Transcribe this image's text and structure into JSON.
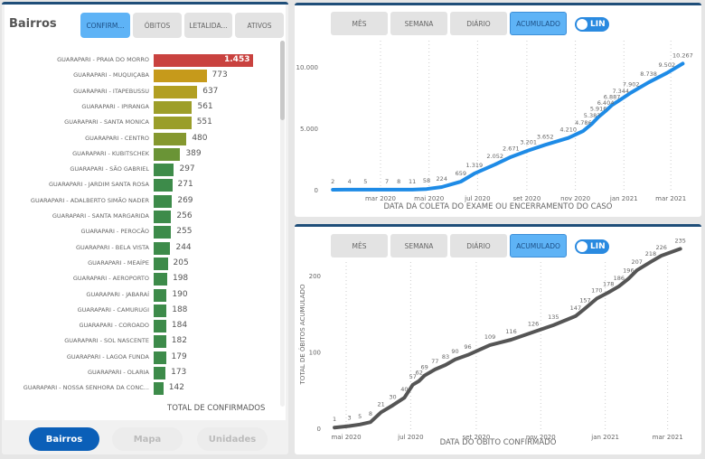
{
  "left": {
    "title": "Bairros",
    "tabs": [
      "CONFIRM...",
      "ÓBITOS",
      "LETALIDA...",
      "ATIVOS"
    ],
    "active_tab": 0,
    "bars": [
      {
        "label": "GUARAPARI - PRAIA DO MORRO",
        "value": 1453,
        "text": "1.453",
        "color": "#c9423f"
      },
      {
        "label": "GUARAPARI - MUQUIÇABA",
        "value": 773,
        "text": "773",
        "color": "#c69a1b"
      },
      {
        "label": "GUARAPARI - ITAPEBUSSU",
        "value": 637,
        "text": "637",
        "color": "#b29f22"
      },
      {
        "label": "GUARAPARI - IPIRANGA",
        "value": 561,
        "text": "561",
        "color": "#9d9e29"
      },
      {
        "label": "GUARAPARI - SANTA MONICA",
        "value": 551,
        "text": "551",
        "color": "#9a9e2a"
      },
      {
        "label": "GUARAPARI - CENTRO",
        "value": 480,
        "text": "480",
        "color": "#85982f"
      },
      {
        "label": "GUARAPARI - KUBITSCHEK",
        "value": 389,
        "text": "389",
        "color": "#6a9436"
      },
      {
        "label": "GUARAPARI - SÃO GABRIEL",
        "value": 297,
        "text": "297",
        "color": "#3f8c4a"
      },
      {
        "label": "GUARAPARI - JARDIM SANTA ROSA",
        "value": 271,
        "text": "271",
        "color": "#3d8b4a"
      },
      {
        "label": "GUARAPARI - ADALBERTO SIMÃO NADER",
        "value": 269,
        "text": "269",
        "color": "#3d8b4a"
      },
      {
        "label": "GUARAPARI - SANTA MARGARIDA",
        "value": 256,
        "text": "256",
        "color": "#3d8b4a"
      },
      {
        "label": "GUARAPARI - PEROCÃO",
        "value": 255,
        "text": "255",
        "color": "#3d8b4a"
      },
      {
        "label": "GUARAPARI - BELA VISTA",
        "value": 244,
        "text": "244",
        "color": "#3d8b4a"
      },
      {
        "label": "GUARAPARI - MEAÍPE",
        "value": 205,
        "text": "205",
        "color": "#3d8b4a"
      },
      {
        "label": "GUARAPARI - AEROPORTO",
        "value": 198,
        "text": "198",
        "color": "#3d8b4a"
      },
      {
        "label": "GUARAPARI - JABARAÍ",
        "value": 190,
        "text": "190",
        "color": "#3d8b4a"
      },
      {
        "label": "GUARAPARI - CAMURUGI",
        "value": 188,
        "text": "188",
        "color": "#3d8b4a"
      },
      {
        "label": "GUARAPARI - COROADO",
        "value": 184,
        "text": "184",
        "color": "#3d8b4a"
      },
      {
        "label": "GUARAPARI - SOL NASCENTE",
        "value": 182,
        "text": "182",
        "color": "#3d8b4a"
      },
      {
        "label": "GUARAPARI - LAGOA FUNDA",
        "value": 179,
        "text": "179",
        "color": "#3d8b4a"
      },
      {
        "label": "GUARAPARI - OLARIA",
        "value": 173,
        "text": "173",
        "color": "#3d8b4a"
      },
      {
        "label": "GUARAPARI - NOSSA SENHORA DA CONC...",
        "value": 142,
        "text": "142",
        "color": "#3d8b4a"
      }
    ],
    "xlabel": "TOTAL DE CONFIRMADOS",
    "nav": [
      "Bairros",
      "Mapa",
      "Unidades"
    ]
  },
  "charts": [
    {
      "tabs": [
        "MÊS",
        "SEMANA",
        "DIÁRIO",
        "ACUMULADO"
      ],
      "active_tab": 3,
      "toggle": "LIN"
    },
    {
      "tabs": [
        "MÊS",
        "SEMANA",
        "DIÁRIO",
        "ACUMULADO"
      ],
      "active_tab": 3,
      "toggle": "LIN"
    }
  ],
  "chart_data": [
    {
      "type": "line",
      "xlabel": "DATA DA COLETA DO EXAME OU ENCERRAMENTO DO CASO",
      "ylabel": "",
      "color": "#1e8be6",
      "ylim": [
        0,
        10500
      ],
      "yticks": [
        {
          "v": 0,
          "t": "0"
        },
        {
          "v": 5000,
          "t": "5.000"
        },
        {
          "v": 10000,
          "t": "10.000"
        }
      ],
      "xticks": [
        {
          "d": "2020-03-01",
          "t": "mar 2020"
        },
        {
          "d": "2020-05-01",
          "t": "mai 2020"
        },
        {
          "d": "2020-07-01",
          "t": "jul 2020"
        },
        {
          "d": "2020-09-01",
          "t": "set 2020"
        },
        {
          "d": "2020-11-01",
          "t": "nov 2020"
        },
        {
          "d": "2021-01-01",
          "t": "jan 2021"
        },
        {
          "d": "2021-03-01",
          "t": "mar 2021"
        }
      ],
      "points": [
        [
          "2020-01-01",
          2,
          "2"
        ],
        [
          "2020-01-22",
          4,
          "4"
        ],
        [
          "2020-02-11",
          5,
          "5"
        ],
        [
          "2020-03-09",
          7,
          "7"
        ],
        [
          "2020-03-24",
          8,
          "8"
        ],
        [
          "2020-04-10",
          11,
          "11"
        ],
        [
          "2020-04-28",
          58,
          "58"
        ],
        [
          "2020-05-17",
          224,
          "224"
        ],
        [
          "2020-06-10",
          659,
          "659"
        ],
        [
          "2020-06-27",
          1319,
          "1.319"
        ],
        [
          "2020-07-23",
          2052,
          "2.052"
        ],
        [
          "2020-08-12",
          2671,
          "2.671"
        ],
        [
          "2020-09-03",
          3201,
          "3.201"
        ],
        [
          "2020-09-24",
          3652,
          "3.652"
        ],
        [
          "2020-10-23",
          4210,
          "4.210"
        ],
        [
          "2020-11-11",
          4786,
          "4.786"
        ],
        [
          "2020-11-22",
          5383,
          "5.383"
        ],
        [
          "2020-11-30",
          5916,
          "5.916"
        ],
        [
          "2020-12-09",
          6404,
          "6.404"
        ],
        [
          "2020-12-17",
          6887,
          "6.887"
        ],
        [
          "2020-12-28",
          7344,
          "7.344"
        ],
        [
          "2021-01-10",
          7902,
          "7.902"
        ],
        [
          "2021-02-01",
          8738,
          "8.738"
        ],
        [
          "2021-02-24",
          9502,
          "9.502"
        ],
        [
          "2021-03-16",
          10267,
          "10.267"
        ]
      ]
    },
    {
      "type": "line",
      "xlabel": "DATA DO ÓBITO CONFIRMADO",
      "ylabel": "TOTAL DE ÓBITOS ACUMULADO",
      "color": "#555555",
      "ylim": [
        0,
        240
      ],
      "yticks": [
        {
          "v": 0,
          "t": "0"
        },
        {
          "v": 100,
          "t": "100"
        },
        {
          "v": 200,
          "t": "200"
        }
      ],
      "xticks": [
        {
          "d": "2020-05-01",
          "t": "mai 2020"
        },
        {
          "d": "2020-07-01",
          "t": "jul 2020"
        },
        {
          "d": "2020-09-01",
          "t": "set 2020"
        },
        {
          "d": "2020-11-01",
          "t": "nov 2020"
        },
        {
          "d": "2021-01-01",
          "t": "jan 2021"
        },
        {
          "d": "2021-03-01",
          "t": "mar 2021"
        }
      ],
      "points": [
        [
          "2020-04-20",
          1,
          "1"
        ],
        [
          "2020-05-04",
          3,
          "3"
        ],
        [
          "2020-05-14",
          5,
          "5"
        ],
        [
          "2020-05-24",
          8,
          "8"
        ],
        [
          "2020-06-03",
          21,
          "21"
        ],
        [
          "2020-06-14",
          30,
          "30"
        ],
        [
          "2020-06-25",
          40,
          "40"
        ],
        [
          "2020-07-03",
          57,
          "57"
        ],
        [
          "2020-07-09",
          62,
          "62"
        ],
        [
          "2020-07-14",
          69,
          "69"
        ],
        [
          "2020-07-24",
          77,
          "77"
        ],
        [
          "2020-08-03",
          83,
          "83"
        ],
        [
          "2020-08-12",
          90,
          "90"
        ],
        [
          "2020-08-24",
          96,
          "96"
        ],
        [
          "2020-09-14",
          109,
          "109"
        ],
        [
          "2020-10-04",
          116,
          "116"
        ],
        [
          "2020-10-25",
          126,
          "126"
        ],
        [
          "2020-11-13",
          135,
          "135"
        ],
        [
          "2020-12-04",
          147,
          "147"
        ],
        [
          "2020-12-13",
          157,
          "157"
        ],
        [
          "2020-12-24",
          170,
          "170"
        ],
        [
          "2021-01-04",
          178,
          "178"
        ],
        [
          "2021-01-14",
          186,
          "186"
        ],
        [
          "2021-01-23",
          196,
          "196"
        ],
        [
          "2021-01-31",
          207,
          "207"
        ],
        [
          "2021-02-13",
          218,
          "218"
        ],
        [
          "2021-02-23",
          226,
          "226"
        ],
        [
          "2021-03-13",
          235,
          "235"
        ]
      ]
    }
  ]
}
